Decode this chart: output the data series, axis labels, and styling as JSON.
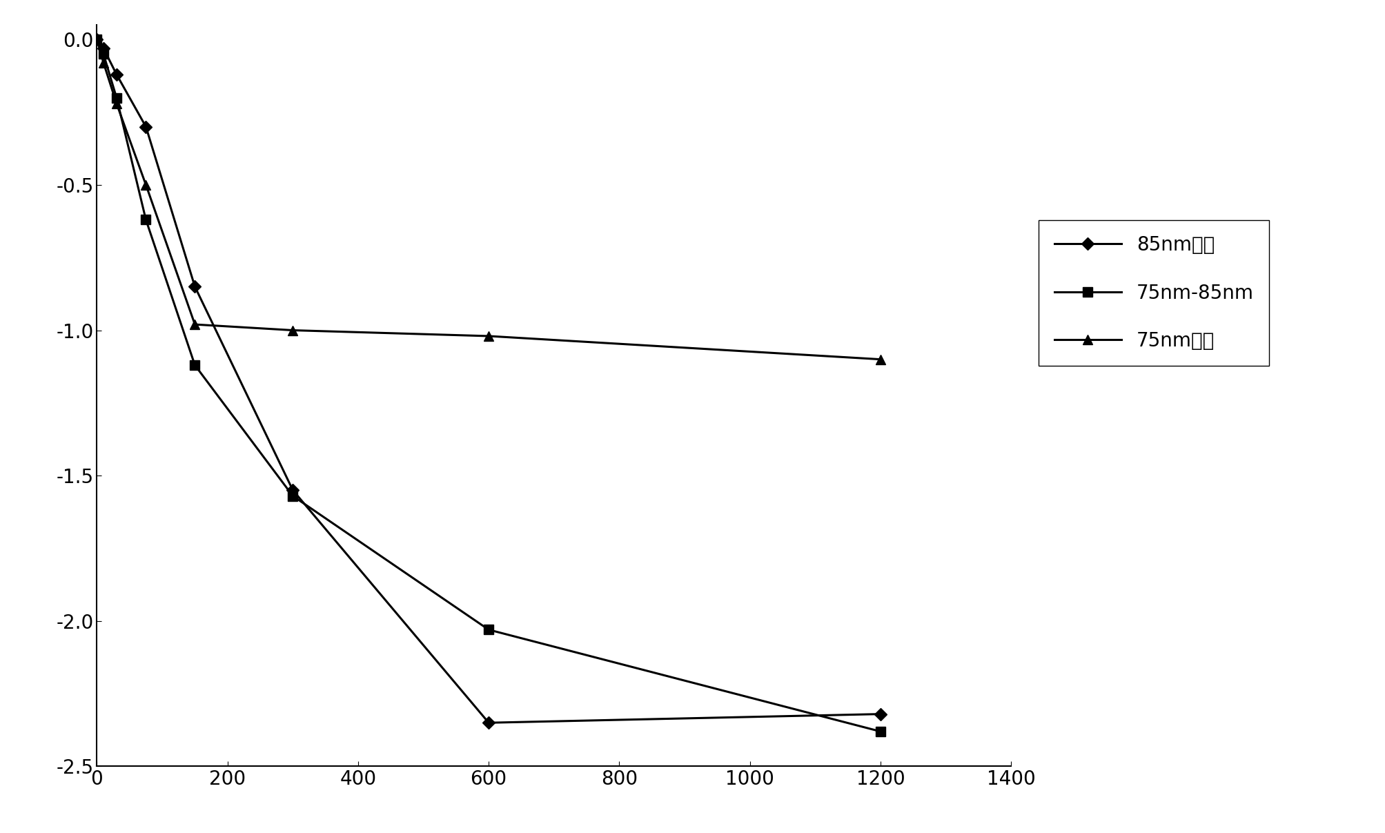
{
  "series": [
    {
      "label": "85nm以上",
      "x": [
        0,
        10,
        30,
        75,
        150,
        300,
        600,
        1200
      ],
      "y": [
        0.0,
        -0.03,
        -0.12,
        -0.3,
        -0.85,
        -1.55,
        -2.35,
        -2.32
      ],
      "marker": "D",
      "markersize": 9,
      "color": "#000000"
    },
    {
      "label": "75nm-85nm",
      "x": [
        0,
        10,
        30,
        75,
        150,
        300,
        600,
        1200
      ],
      "y": [
        0.0,
        -0.05,
        -0.2,
        -0.62,
        -1.12,
        -1.57,
        -2.03,
        -2.38
      ],
      "marker": "s",
      "markersize": 10,
      "color": "#000000"
    },
    {
      "label": "75nm以下",
      "x": [
        0,
        10,
        30,
        75,
        150,
        300,
        600,
        1200
      ],
      "y": [
        0.0,
        -0.08,
        -0.22,
        -0.5,
        -0.98,
        -1.0,
        -1.02,
        -1.1
      ],
      "marker": "^",
      "markersize": 10,
      "color": "#000000"
    }
  ],
  "xlim": [
    0,
    1400
  ],
  "ylim": [
    -2.5,
    0.05
  ],
  "xticks": [
    0,
    200,
    400,
    600,
    800,
    1000,
    1200,
    1400
  ],
  "yticks": [
    0,
    -0.5,
    -1.0,
    -1.5,
    -2.0,
    -2.5
  ],
  "background_color": "#ffffff",
  "linewidth": 2.2,
  "legend_fontsize": 20,
  "tick_fontsize": 20,
  "figure_width": 20.07,
  "figure_height": 12.07
}
